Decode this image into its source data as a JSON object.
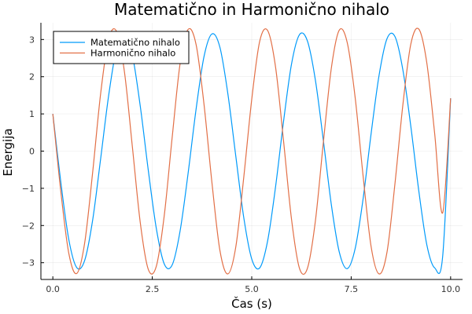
{
  "chart_data": {
    "type": "line",
    "title": "Matematično in Harmonično nihalo",
    "xlabel": "Čas (s)",
    "ylabel": "Energija",
    "xlim": [
      -0.3,
      10.3
    ],
    "ylim": [
      -3.45,
      3.45
    ],
    "x_ticks": [
      0,
      2.5,
      5,
      7.5,
      10
    ],
    "x_tick_labels": [
      "0.0",
      "2.5",
      "5.0",
      "7.5",
      "10.0"
    ],
    "y_ticks": [
      -3,
      -2,
      -1,
      0,
      1,
      2,
      3
    ],
    "y_tick_labels": [
      "−3",
      "−2",
      "−1",
      "0",
      "1",
      "2",
      "3"
    ],
    "grid": true,
    "legend_position": "top-left",
    "x_range": [
      0,
      10
    ],
    "series": [
      {
        "name": "Matematično nihalo",
        "color": "#009AFA",
        "x": [
          0.0,
          0.2,
          0.4,
          0.6,
          0.8,
          1.0,
          1.2,
          1.4,
          1.6,
          1.8,
          2.0,
          2.2,
          2.4,
          2.6,
          2.8,
          3.0,
          3.2,
          3.4,
          3.6,
          3.8,
          4.0,
          4.2,
          4.4,
          4.6,
          4.8,
          5.0,
          5.2,
          5.4,
          5.6,
          5.8,
          6.0,
          6.2,
          6.4,
          6.6,
          6.8,
          7.0,
          7.2,
          7.4,
          7.6,
          7.8,
          8.0,
          8.2,
          8.4,
          8.6,
          8.8,
          9.0,
          9.2,
          9.4,
          9.6,
          9.8,
          10.0
        ],
        "y": [
          1.0,
          -0.83,
          -2.37,
          -3.13,
          -2.94,
          -1.86,
          -0.22,
          1.47,
          2.75,
          3.16,
          2.58,
          1.19,
          -0.52,
          -2.07,
          -3.03,
          -3.06,
          -2.14,
          -0.6,
          1.12,
          2.54,
          3.15,
          2.79,
          1.54,
          -0.14,
          -1.79,
          -2.9,
          -3.14,
          -2.41,
          -0.95,
          0.8,
          2.34,
          3.13,
          2.96,
          1.91,
          0.29,
          -1.43,
          -2.71,
          -3.16,
          -2.62,
          -1.28,
          0.46,
          2.03,
          3.02,
          3.08,
          2.18,
          0.66,
          -1.07,
          -2.51,
          -3.14,
          -2.83,
          1.42
        ]
      },
      {
        "name": "Harmonično nihalo",
        "color": "#E26F46",
        "x": [
          0.0,
          0.2,
          0.4,
          0.6,
          0.8,
          1.0,
          1.2,
          1.4,
          1.6,
          1.8,
          2.0,
          2.2,
          2.4,
          2.6,
          2.8,
          3.0,
          3.2,
          3.4,
          3.6,
          3.8,
          4.0,
          4.2,
          4.4,
          4.6,
          4.8,
          5.0,
          5.2,
          5.4,
          5.6,
          5.8,
          6.0,
          6.2,
          6.4,
          6.6,
          6.8,
          7.0,
          7.2,
          7.4,
          7.6,
          7.8,
          8.0,
          8.2,
          8.4,
          8.6,
          8.8,
          9.0,
          9.2,
          9.4,
          9.6,
          9.8,
          10.0
        ],
        "y": [
          1.0,
          -1.08,
          -2.74,
          -3.29,
          -2.47,
          -0.58,
          1.53,
          3.0,
          3.22,
          2.13,
          0.11,
          -1.94,
          -3.18,
          -3.1,
          -1.74,
          0.37,
          2.36,
          3.27,
          2.87,
          1.26,
          -0.85,
          -2.67,
          -3.3,
          -2.57,
          -0.7,
          1.39,
          2.95,
          3.24,
          2.25,
          0.27,
          -1.83,
          -3.15,
          -3.15,
          -1.88,
          0.23,
          2.22,
          3.25,
          2.92,
          1.44,
          -0.67,
          -2.56,
          -3.3,
          -2.72,
          -0.88,
          1.25,
          2.88,
          3.28,
          2.38,
          0.46,
          -1.66,
          1.42
        ]
      }
    ]
  }
}
